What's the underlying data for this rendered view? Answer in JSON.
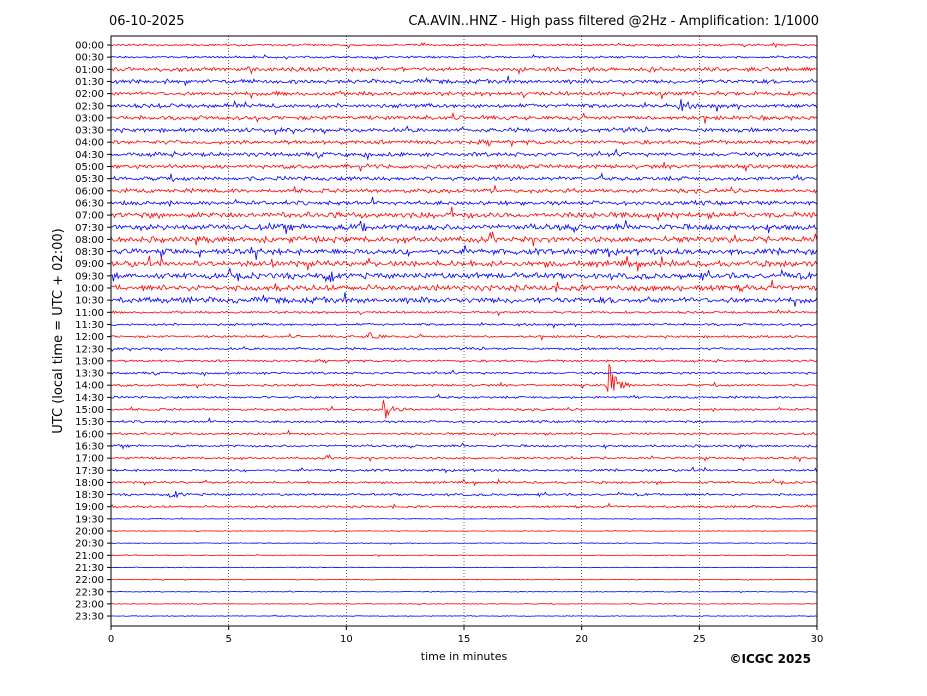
{
  "chart_data": {
    "type": "line",
    "date": "06-10-2025",
    "title": "CA.AVIN..HNZ - High pass filtered @2Hz - Amplification: 1/1000",
    "xlabel": "time in minutes",
    "ylabel": "UTC (local time = UTC + 02:00)",
    "xlim": [
      0,
      30
    ],
    "xticks": [
      0,
      5,
      10,
      15,
      20,
      25,
      30
    ],
    "grid_x": true,
    "row_labels": [
      "00:00",
      "00:30",
      "01:00",
      "01:30",
      "02:00",
      "02:30",
      "03:00",
      "03:30",
      "04:00",
      "04:30",
      "05:00",
      "05:30",
      "06:00",
      "06:30",
      "07:00",
      "07:30",
      "08:00",
      "08:30",
      "09:00",
      "09:30",
      "10:00",
      "10:30",
      "11:00",
      "11:30",
      "12:00",
      "12:30",
      "13:00",
      "13:30",
      "14:00",
      "14:30",
      "15:00",
      "15:30",
      "16:00",
      "16:30",
      "17:00",
      "17:30",
      "18:00",
      "18:30",
      "19:00",
      "19:30",
      "20:00",
      "20:30",
      "21:00",
      "21:30",
      "22:00",
      "22:30",
      "23:00",
      "23:30"
    ],
    "trace_colors": [
      "#ff0000",
      "#0000ff"
    ],
    "events": [
      {
        "row": "02:30",
        "minute": 24.2,
        "amplitude": "small"
      },
      {
        "row": "07:30",
        "minute": 10.6,
        "amplitude": "small"
      },
      {
        "row": "09:30",
        "minute": 9.2,
        "amplitude": "small"
      },
      {
        "row": "12:00",
        "minute": 11.0,
        "amplitude": "small"
      },
      {
        "row": "14:00",
        "minute": 21.2,
        "amplitude": "large"
      },
      {
        "row": "15:00",
        "minute": 11.6,
        "amplitude": "medium"
      },
      {
        "row": "18:30",
        "minute": 2.6,
        "amplitude": "small"
      }
    ]
  },
  "footer": {
    "copyright": "©ICGC 2025"
  }
}
